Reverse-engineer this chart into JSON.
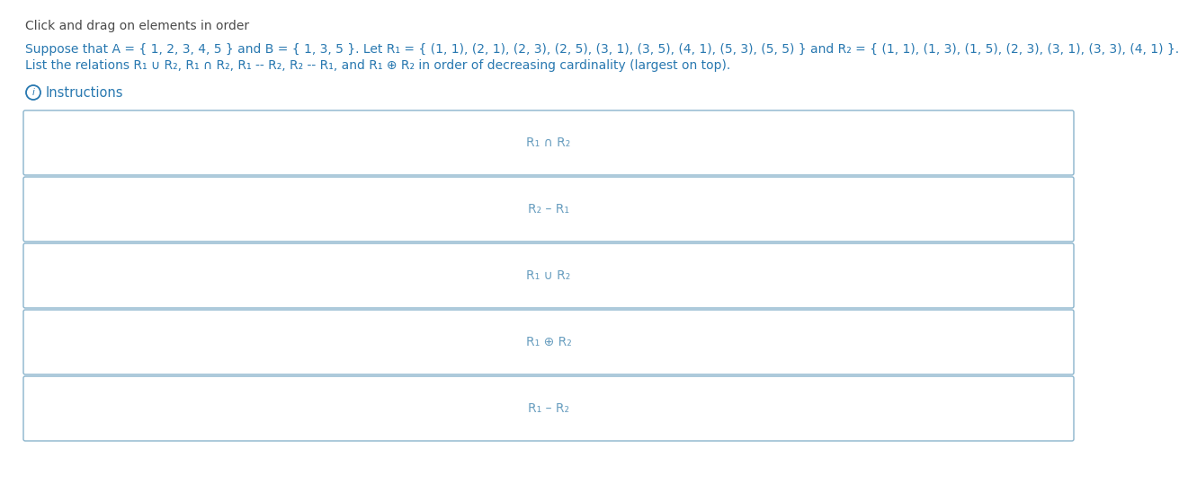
{
  "title_text": "Click and drag on elements in order",
  "description_line1": "Suppose that A = { 1, 2, 3, 4, 5 } and B = { 1, 3, 5 }. Let R₁ = { (1, 1), (2, 1), (2, 3), (2, 5), (3, 1), (3, 5), (4, 1), (5, 3), (5, 5) } and R₂ = { (1, 1), (1, 3), (1, 5), (2, 3), (3, 1), (3, 3), (4, 1) }.",
  "description_line2": "List the relations R₁ ∪ R₂, R₁ ∩ R₂, R₁ -- R₂, R₂ -- R₁, and R₁ ⊕ R₂ in order of decreasing cardinality (largest on top).",
  "instructions_text": "Instructions",
  "box_labels": [
    "R₁ ∩ R₂",
    "R₂ – R₁",
    "R₁ ∪ R₂",
    "R₁ ⊕ R₂",
    "R₁ – R₂"
  ],
  "title_color": "#4a4a4a",
  "description_color": "#2878b0",
  "instructions_color": "#2878b0",
  "box_border_color": "#8ab4cc",
  "box_label_color": "#6a9fc0",
  "background_color": "#ffffff",
  "box_fill_color": "#ffffff",
  "title_fontsize": 10,
  "description_fontsize": 10,
  "instructions_fontsize": 10.5,
  "label_fontsize": 10
}
